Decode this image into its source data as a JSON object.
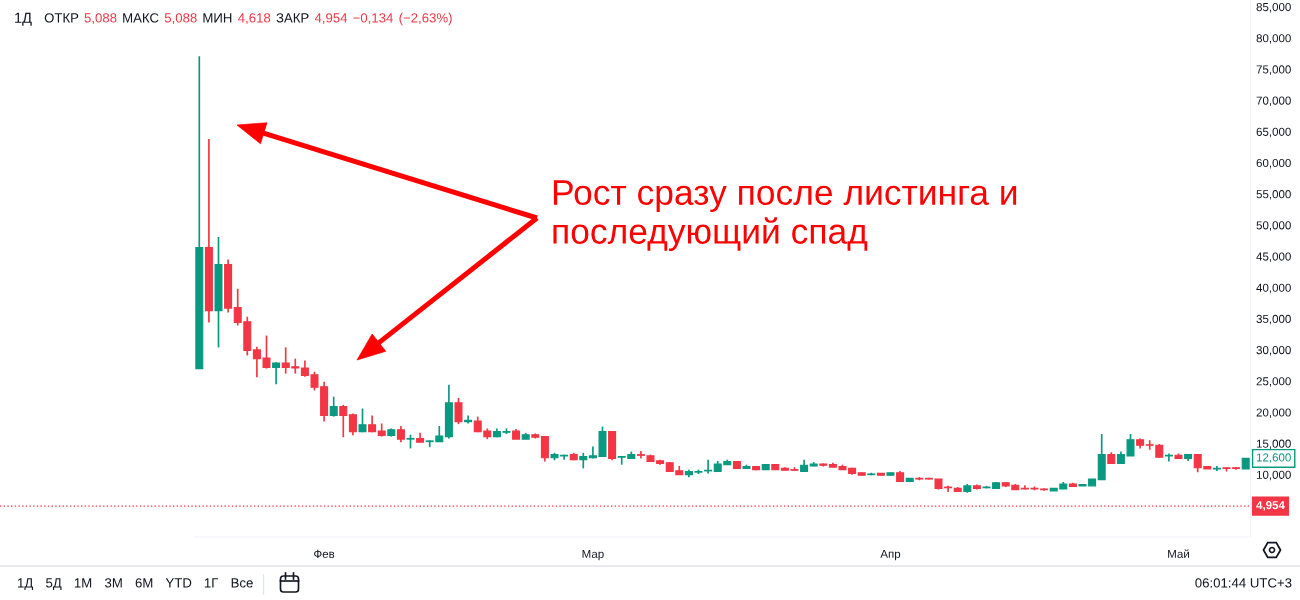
{
  "chart_data": {
    "type": "candlestick",
    "title": "1Д",
    "subtitle": "ОТКР 5,088 МАКС 5,088 МИН 4,618 ЗАКР 4,954 −0,134 (−2,63%)",
    "categories": [
      null,
      null,
      null,
      null,
      null,
      null,
      null,
      null,
      null,
      null,
      null,
      null,
      null,
      "Фев",
      null,
      null,
      null,
      null,
      null,
      null,
      null,
      null,
      null,
      null,
      null,
      null,
      null,
      null,
      null,
      null,
      null,
      null,
      null,
      null,
      null,
      null,
      null,
      null,
      null,
      null,
      null,
      "Мар",
      null,
      null,
      null,
      null,
      null,
      null,
      null,
      null,
      null,
      null,
      null,
      null,
      null,
      null,
      null,
      null,
      null,
      null,
      null,
      null,
      null,
      null,
      null,
      null,
      null,
      null,
      null,
      null,
      null,
      null,
      "Апр",
      null,
      null,
      null,
      null,
      null,
      null,
      null,
      null,
      null,
      null,
      null,
      null,
      null,
      null,
      null,
      null,
      null,
      null,
      null,
      null,
      null,
      null,
      null,
      null,
      null,
      null,
      null,
      null,
      null,
      "Май",
      null,
      null,
      null,
      null,
      null,
      null,
      null
    ],
    "ohlc": [
      [
        27.0,
        77.1,
        27.0,
        46.4
      ],
      [
        46.4,
        63.8,
        34.4,
        36.3
      ],
      [
        36.3,
        48.1,
        30.4,
        43.7
      ],
      [
        43.7,
        44.5,
        36.0,
        36.7
      ],
      [
        36.8,
        39.8,
        33.9,
        34.4
      ],
      [
        34.5,
        35.3,
        29.1,
        29.9
      ],
      [
        30.0,
        30.5,
        25.6,
        28.6
      ],
      [
        28.7,
        32.3,
        27.0,
        27.2
      ],
      [
        27.2,
        28.0,
        24.5,
        27.9
      ],
      [
        27.9,
        30.4,
        26.2,
        27.2
      ],
      [
        27.3,
        28.6,
        26.2,
        27.1
      ],
      [
        27.1,
        28.3,
        25.7,
        25.9
      ],
      [
        26.0,
        26.5,
        23.5,
        24.0
      ],
      [
        24.1,
        24.9,
        18.5,
        19.5
      ],
      [
        19.5,
        22.5,
        19.3,
        20.9
      ],
      [
        20.9,
        21.2,
        16.0,
        19.5
      ],
      [
        19.6,
        19.8,
        16.3,
        16.9
      ],
      [
        16.9,
        20.6,
        16.8,
        18.0
      ],
      [
        18.0,
        19.5,
        16.8,
        16.9
      ],
      [
        17.0,
        18.2,
        16.1,
        16.3
      ],
      [
        16.3,
        17.4,
        16.1,
        17.2
      ],
      [
        17.2,
        17.8,
        15.2,
        15.7
      ],
      [
        15.7,
        16.4,
        14.2,
        15.8
      ],
      [
        15.8,
        16.7,
        15.2,
        15.2
      ],
      [
        15.3,
        15.5,
        14.4,
        15.4
      ],
      [
        15.3,
        17.8,
        15.3,
        16.2
      ],
      [
        16.1,
        24.4,
        15.8,
        21.5
      ],
      [
        21.5,
        22.3,
        18.1,
        18.5
      ],
      [
        18.5,
        19.5,
        18.2,
        18.7
      ],
      [
        18.6,
        19.3,
        16.8,
        16.9
      ],
      [
        17.0,
        17.4,
        15.7,
        16.1
      ],
      [
        16.1,
        17.4,
        16.0,
        16.9
      ],
      [
        16.8,
        17.4,
        16.5,
        16.9
      ],
      [
        17.0,
        17.3,
        15.7,
        15.7
      ],
      [
        15.7,
        16.7,
        15.7,
        16.4
      ],
      [
        16.4,
        16.6,
        15.8,
        16.0
      ],
      [
        16.1,
        16.2,
        12.1,
        12.7
      ],
      [
        12.7,
        13.5,
        12.3,
        13.2
      ],
      [
        13.0,
        13.2,
        12.4,
        13.1
      ],
      [
        13.2,
        13.5,
        12.3,
        12.4
      ],
      [
        12.4,
        13.5,
        11.0,
        12.9
      ],
      [
        12.7,
        14.5,
        12.6,
        13.0
      ],
      [
        12.9,
        17.7,
        12.9,
        16.9
      ],
      [
        16.9,
        16.9,
        12.3,
        12.6
      ],
      [
        12.8,
        13.0,
        11.6,
        12.9
      ],
      [
        12.6,
        13.7,
        12.5,
        13.2
      ],
      [
        13.2,
        13.8,
        12.6,
        13.1
      ],
      [
        13.0,
        13.2,
        12.1,
        12.1
      ],
      [
        12.2,
        12.4,
        11.6,
        11.8
      ],
      [
        11.9,
        12.0,
        10.5,
        10.5
      ],
      [
        10.6,
        11.4,
        10.0,
        10.0
      ],
      [
        10.0,
        10.8,
        9.6,
        10.5
      ],
      [
        10.4,
        10.8,
        10.1,
        10.5
      ],
      [
        10.6,
        12.4,
        10.2,
        10.7
      ],
      [
        10.5,
        12.2,
        10.5,
        11.7
      ],
      [
        11.6,
        12.4,
        11.6,
        12.1
      ],
      [
        12.1,
        12.1,
        10.9,
        11.0
      ],
      [
        11.0,
        11.6,
        10.9,
        11.3
      ],
      [
        11.3,
        11.4,
        10.7,
        10.8
      ],
      [
        10.8,
        11.6,
        10.8,
        11.6
      ],
      [
        11.6,
        11.7,
        10.8,
        10.8
      ],
      [
        11.0,
        11.2,
        10.7,
        10.7
      ],
      [
        10.8,
        11.2,
        10.7,
        10.7
      ],
      [
        10.5,
        12.4,
        10.5,
        11.5
      ],
      [
        11.4,
        12.0,
        11.3,
        11.7
      ],
      [
        11.7,
        11.8,
        11.3,
        11.5
      ],
      [
        11.6,
        11.9,
        11.2,
        11.2
      ],
      [
        11.3,
        11.6,
        10.8,
        10.8
      ],
      [
        11.0,
        11.1,
        10.0,
        10.2
      ],
      [
        10.3,
        10.3,
        9.9,
        9.9
      ],
      [
        10.0,
        10.3,
        9.9,
        10.1
      ],
      [
        10.2,
        10.2,
        9.9,
        9.9
      ],
      [
        9.9,
        10.3,
        9.9,
        10.3
      ],
      [
        10.3,
        10.6,
        8.9,
        8.9
      ],
      [
        8.9,
        9.4,
        8.8,
        9.4
      ],
      [
        9.4,
        9.6,
        9.1,
        9.3
      ],
      [
        9.4,
        9.5,
        9.2,
        9.3
      ],
      [
        9.3,
        9.3,
        7.6,
        7.8
      ],
      [
        8.0,
        8.2,
        7.2,
        7.9
      ],
      [
        7.8,
        8.0,
        7.3,
        7.3
      ],
      [
        7.3,
        8.5,
        7.1,
        8.2
      ],
      [
        8.2,
        8.4,
        7.6,
        7.8
      ],
      [
        7.9,
        8.2,
        7.8,
        8.0
      ],
      [
        7.8,
        8.8,
        7.8,
        8.7
      ],
      [
        8.7,
        8.8,
        8.0,
        8.2
      ],
      [
        8.3,
        8.5,
        7.6,
        7.6
      ],
      [
        7.8,
        8.3,
        7.6,
        7.7
      ],
      [
        7.8,
        8.1,
        7.5,
        7.7
      ],
      [
        7.7,
        7.8,
        7.4,
        7.6
      ],
      [
        7.4,
        7.8,
        7.4,
        7.8
      ],
      [
        7.7,
        8.8,
        7.7,
        8.5
      ],
      [
        8.5,
        8.7,
        8.0,
        8.1
      ],
      [
        8.2,
        8.5,
        8.2,
        8.4
      ],
      [
        8.2,
        9.3,
        8.2,
        9.3
      ],
      [
        9.2,
        16.5,
        9.2,
        13.2
      ],
      [
        13.2,
        13.6,
        11.7,
        11.8
      ],
      [
        11.8,
        13.7,
        11.8,
        13.2
      ],
      [
        13.0,
        16.5,
        13.0,
        15.6
      ],
      [
        15.6,
        15.8,
        14.2,
        14.7
      ],
      [
        14.8,
        15.5,
        14.0,
        14.7
      ],
      [
        14.7,
        14.9,
        12.7,
        12.8
      ],
      [
        13.0,
        13.4,
        12.1,
        13.1
      ],
      [
        13.1,
        13.4,
        12.5,
        12.6
      ],
      [
        12.6,
        13.2,
        12.2,
        13.2
      ],
      [
        13.2,
        13.2,
        10.4,
        11.1
      ],
      [
        11.3,
        11.4,
        10.9,
        10.9
      ],
      [
        10.9,
        11.4,
        10.6,
        11.0
      ],
      [
        11.1,
        11.1,
        10.5,
        11.0
      ],
      [
        11.1,
        11.2,
        10.8,
        11.0
      ],
      [
        10.9,
        12.6,
        10.9,
        12.6
      ]
    ],
    "colors": [
      "#089981",
      "#f23645",
      "#089981",
      "#f23645",
      "#f23645",
      "#f23645",
      "#f23645",
      "#f23645",
      "#089981",
      "#f23645",
      "#f23645",
      "#f23645",
      "#f23645",
      "#f23645",
      "#089981",
      "#f23645",
      "#f23645",
      "#089981",
      "#f23645",
      "#f23645",
      "#089981",
      "#f23645",
      "#089981",
      "#f23645",
      "#089981",
      "#089981",
      "#089981",
      "#f23645",
      "#089981",
      "#f23645",
      "#f23645",
      "#089981",
      "#089981",
      "#f23645",
      "#089981",
      "#f23645",
      "#f23645",
      "#089981",
      "#089981",
      "#f23645",
      "#089981",
      "#089981",
      "#089981",
      "#f23645",
      "#089981",
      "#089981",
      "#f23645",
      "#f23645",
      "#f23645",
      "#f23645",
      "#f23645",
      "#089981",
      "#089981",
      "#089981",
      "#089981",
      "#089981",
      "#f23645",
      "#089981",
      "#f23645",
      "#089981",
      "#f23645",
      "#f23645",
      "#f23645",
      "#089981",
      "#089981",
      "#f23645",
      "#f23645",
      "#f23645",
      "#f23645",
      "#f23645",
      "#089981",
      "#f23645",
      "#089981",
      "#f23645",
      "#089981",
      "#f23645",
      "#f23645",
      "#f23645",
      "#f23645",
      "#f23645",
      "#089981",
      "#f23645",
      "#089981",
      "#089981",
      "#f23645",
      "#f23645",
      "#f23645",
      "#f23645",
      "#f23645",
      "#089981",
      "#089981",
      "#f23645",
      "#089981",
      "#089981",
      "#089981",
      "#f23645",
      "#089981",
      "#089981",
      "#f23645",
      "#f23645",
      "#f23645",
      "#089981",
      "#f23645",
      "#089981",
      "#f23645",
      "#f23645",
      "#089981",
      "#f23645",
      "#f23645",
      "#089981"
    ],
    "ylim": [
      0,
      86.1
    ],
    "yticks": [
      {
        "value": 10,
        "label": "10,000"
      },
      {
        "value": 15,
        "label": "15,000"
      },
      {
        "value": 20,
        "label": "20,000"
      },
      {
        "value": 25,
        "label": "25,000"
      },
      {
        "value": 30,
        "label": "30,000"
      },
      {
        "value": 35,
        "label": "35,000"
      },
      {
        "value": 40,
        "label": "40,000"
      },
      {
        "value": 45,
        "label": "45,000"
      },
      {
        "value": 50,
        "label": "50,000"
      },
      {
        "value": 55,
        "label": "55,000"
      },
      {
        "value": 60,
        "label": "60,000"
      },
      {
        "value": 65,
        "label": "65,000"
      },
      {
        "value": 70,
        "label": "70,000"
      },
      {
        "value": 75,
        "label": "75,000"
      },
      {
        "value": 80,
        "label": "80,000"
      },
      {
        "value": 85,
        "label": "85,000"
      }
    ],
    "ref_lines": [
      {
        "axis": "y",
        "value": 4.954,
        "label": "4,954",
        "color": "#f23645",
        "line_style": "dotted"
      }
    ],
    "annotations": [
      "Рост сразу после листинга и\nпоследующий спад",
      {
        "text": "12,600",
        "y": 12.6
      },
      "1Д",
      "5Д",
      "1М",
      "3М",
      "6М",
      "YTD",
      "1Г",
      "Все",
      "06:01:44 UTC+3"
    ]
  }
}
